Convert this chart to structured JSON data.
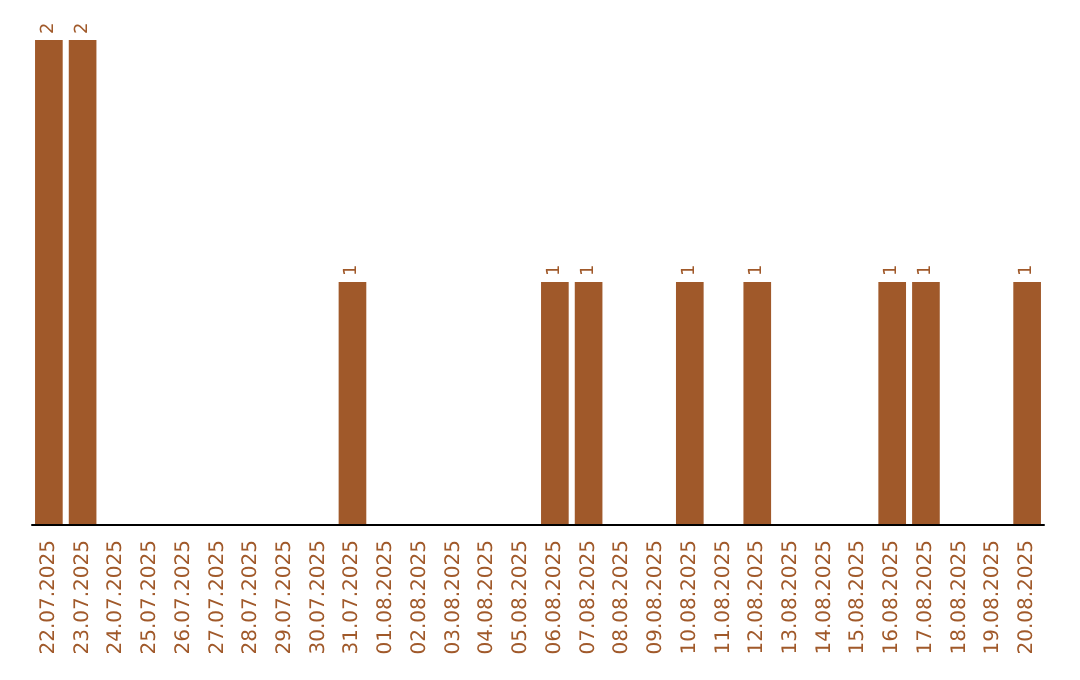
{
  "chart_data": {
    "type": "bar",
    "categories": [
      "22.07.2025",
      "23.07.2025",
      "24.07.2025",
      "25.07.2025",
      "26.07.2025",
      "27.07.2025",
      "28.07.2025",
      "29.07.2025",
      "30.07.2025",
      "31.07.2025",
      "01.08.2025",
      "02.08.2025",
      "03.08.2025",
      "04.08.2025",
      "05.08.2025",
      "06.08.2025",
      "07.08.2025",
      "08.08.2025",
      "09.08.2025",
      "10.08.2025",
      "11.08.2025",
      "12.08.2025",
      "13.08.2025",
      "14.08.2025",
      "15.08.2025",
      "16.08.2025",
      "17.08.2025",
      "18.08.2025",
      "19.08.2025",
      "20.08.2025"
    ],
    "values": [
      2,
      2,
      0,
      0,
      0,
      0,
      0,
      0,
      0,
      1,
      0,
      0,
      0,
      0,
      0,
      1,
      1,
      0,
      0,
      1,
      0,
      1,
      0,
      0,
      0,
      1,
      1,
      0,
      0,
      1
    ],
    "value_labels": [
      "2",
      "2",
      null,
      null,
      null,
      null,
      null,
      null,
      null,
      "1",
      null,
      null,
      null,
      null,
      null,
      "1",
      "1",
      null,
      null,
      "1",
      null,
      "1",
      null,
      null,
      null,
      "1",
      "1",
      null,
      null,
      "1"
    ],
    "color": "#a0592a"
  }
}
